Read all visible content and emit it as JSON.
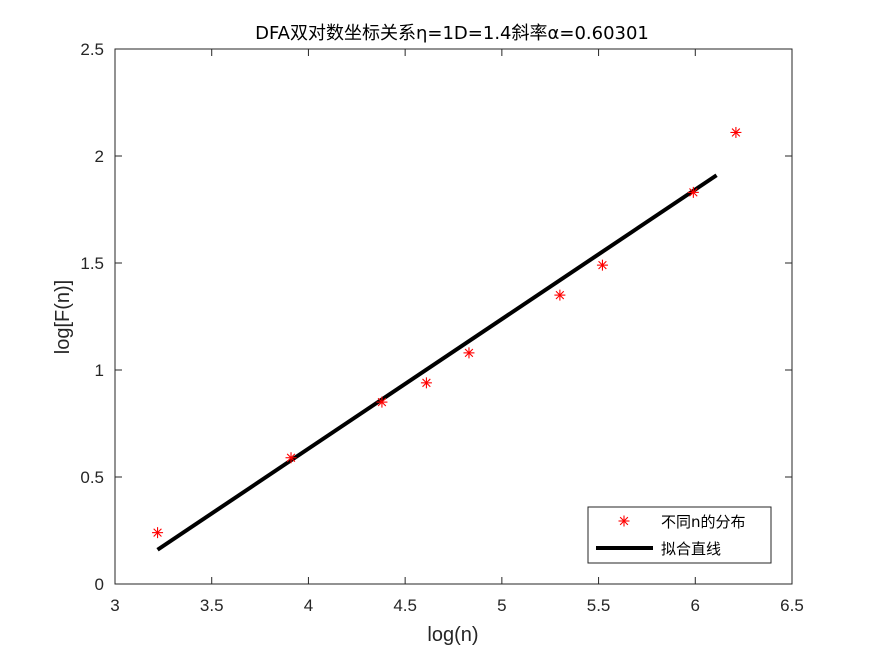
{
  "chart_data": {
    "type": "scatter",
    "title": "DFA双对数坐标关系η=1D=1.4斜率α=0.60301",
    "xlabel": "log(n)",
    "ylabel": "log[F(n)]",
    "xlim": [
      3,
      6.5
    ],
    "ylim": [
      0,
      2.5
    ],
    "xticks": [
      "3",
      "3.5",
      "4",
      "4.5",
      "5",
      "5.5",
      "6",
      "6.5"
    ],
    "yticks": [
      "0",
      "0.5",
      "1",
      "1.5",
      "2",
      "2.5"
    ],
    "grid": false,
    "legend_position": "bottom-right",
    "series": [
      {
        "name": "不同n的分布",
        "marker": "asterisk",
        "color": "#ff0000",
        "x": [
          3.22,
          3.91,
          4.38,
          4.61,
          4.83,
          5.3,
          5.52,
          5.99,
          6.21
        ],
        "y": [
          0.24,
          0.59,
          0.85,
          0.94,
          1.08,
          1.35,
          1.49,
          1.83,
          2.11
        ]
      },
      {
        "name": "拟合直线",
        "line": true,
        "color": "#000000",
        "x": [
          3.22,
          6.11
        ],
        "y": [
          0.16,
          1.91
        ]
      }
    ]
  }
}
